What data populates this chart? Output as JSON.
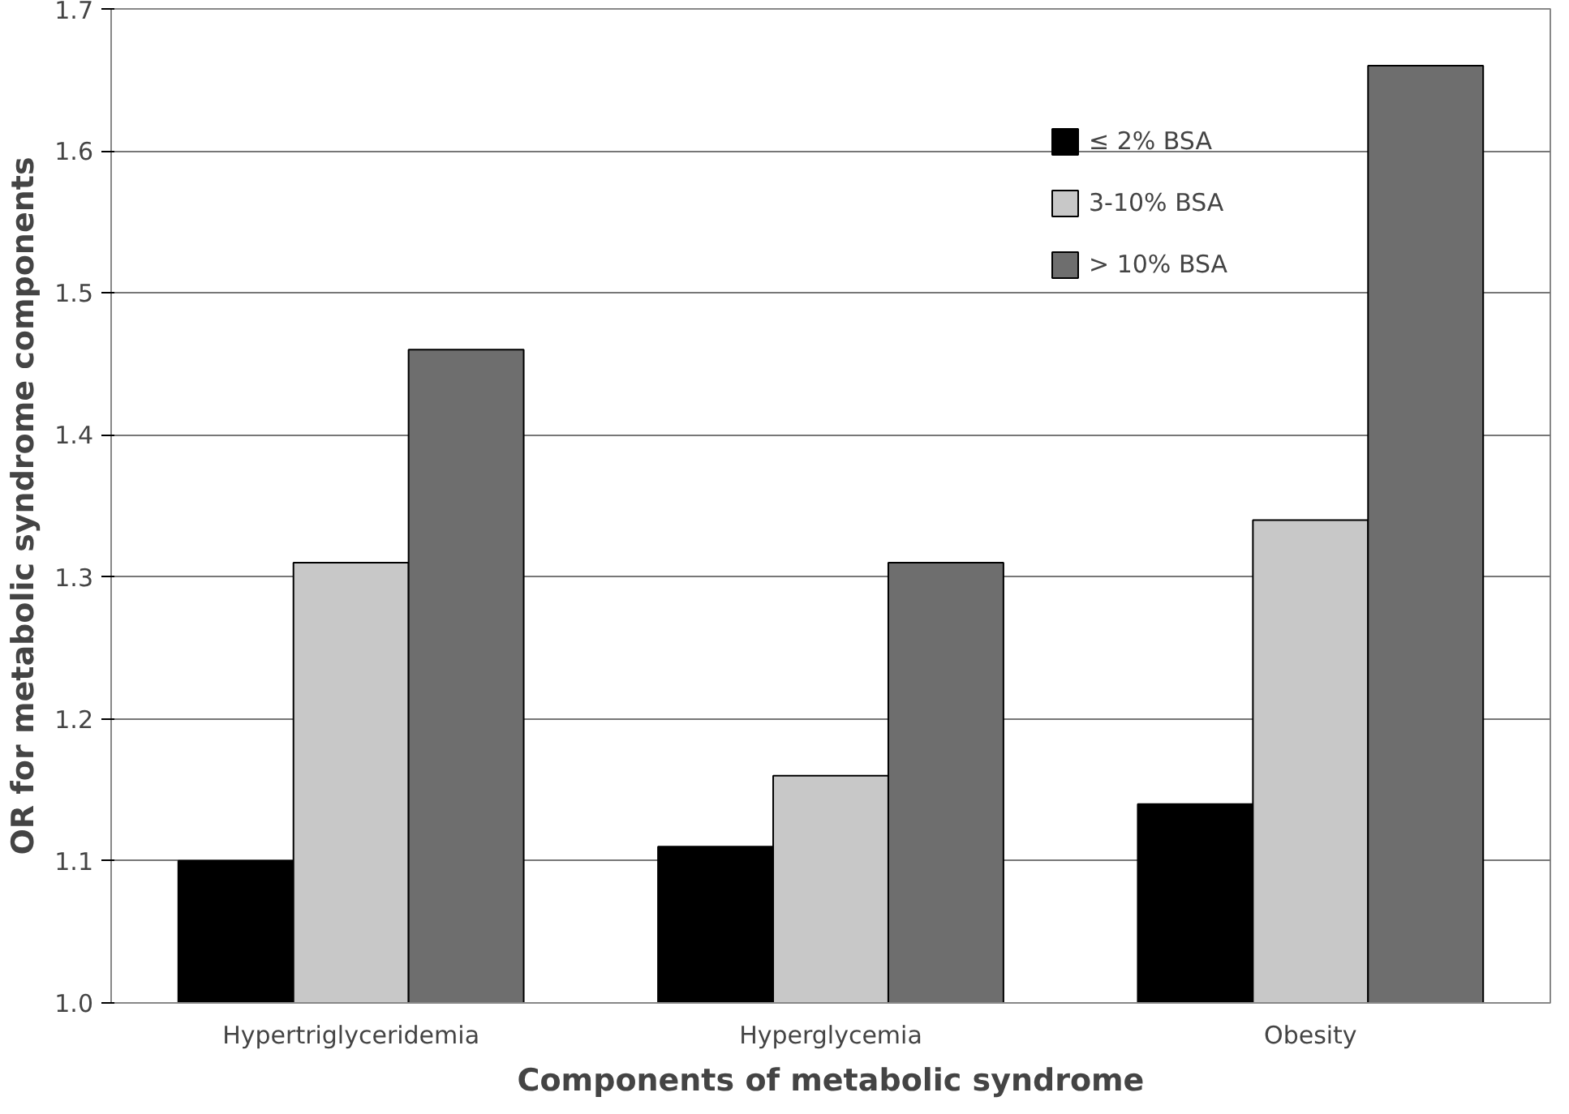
{
  "chart_data": {
    "type": "bar",
    "xlabel": "Components of metabolic syndrome",
    "ylabel": "OR for metabolic syndrome components",
    "categories": [
      "Hypertriglyceridemia",
      "Hyperglycemia",
      "Obesity"
    ],
    "series": [
      {
        "name": "≤ 2% BSA",
        "color": "#000000",
        "values": [
          1.1,
          1.11,
          1.14
        ]
      },
      {
        "name": "3-10% BSA",
        "color": "#c8c8c8",
        "values": [
          1.31,
          1.16,
          1.34
        ]
      },
      {
        "name": "> 10% BSA",
        "color": "#6e6e6e",
        "values": [
          1.46,
          1.31,
          1.66
        ]
      }
    ],
    "ylim": [
      1.0,
      1.7
    ],
    "yticks": [
      "1.0",
      1.1,
      1.2,
      1.3,
      1.4,
      1.5,
      1.6,
      1.7
    ],
    "grid": "y",
    "legend": "top right"
  }
}
